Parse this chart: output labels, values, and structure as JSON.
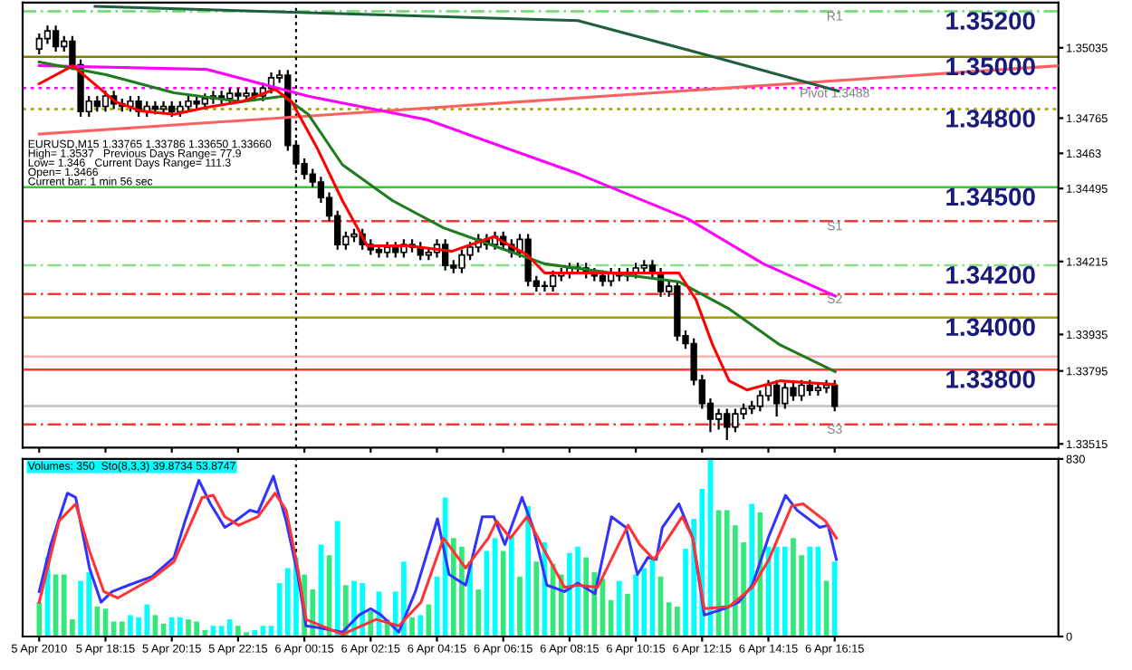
{
  "chart_data": [
    {
      "type": "candlestick",
      "title": "EURUSD,M15 1.33765 1.33786 1.33650 1.33660",
      "annotations": [
        "High= 1.3537   Previous Days Range= 77.9",
        "Low= 1.346   Current Days Range= 111.3",
        "Open= 1.3466",
        "Current bar: 1 min 56 sec",
        {
          "text": "1.35200",
          "x": "2010-04-06T20:57",
          "y": 1.35175
        },
        {
          "text": "1.35000",
          "x": "2010-04-06T20:57",
          "y": 1.35
        },
        {
          "text": "1.34800",
          "x": "2010-04-06T20:57",
          "y": 1.348
        },
        {
          "text": "1.34500",
          "x": "2010-04-06T20:57",
          "y": 1.345
        },
        {
          "text": "1.34200",
          "x": "2010-04-06T20:57",
          "y": 1.342
        },
        {
          "text": "1.34000",
          "x": "2010-04-06T20:57",
          "y": 1.34
        },
        {
          "text": "1.33800",
          "x": "2010-04-06T20:57",
          "y": 1.338
        }
      ],
      "x": [
        "2010-04-05T16:15",
        "2010-04-05T16:30",
        "2010-04-05T16:45",
        "2010-04-05T17:00",
        "2010-04-05T17:15",
        "2010-04-05T17:30",
        "2010-04-05T17:45",
        "2010-04-05T18:00",
        "2010-04-05T18:15",
        "2010-04-05T18:30",
        "2010-04-05T18:45",
        "2010-04-05T19:00",
        "2010-04-05T19:15",
        "2010-04-05T19:30",
        "2010-04-05T19:45",
        "2010-04-05T20:00",
        "2010-04-05T20:15",
        "2010-04-05T20:30",
        "2010-04-05T20:45",
        "2010-04-05T21:00",
        "2010-04-05T21:15",
        "2010-04-05T21:30",
        "2010-04-05T21:45",
        "2010-04-05T22:00",
        "2010-04-05T22:15",
        "2010-04-05T22:30",
        "2010-04-05T22:45",
        "2010-04-05T23:00",
        "2010-04-05T23:15",
        "2010-04-05T23:30",
        "2010-04-05T23:45",
        "2010-04-06T00:00",
        "2010-04-06T00:15",
        "2010-04-06T00:30",
        "2010-04-06T00:45",
        "2010-04-06T01:00",
        "2010-04-06T01:15",
        "2010-04-06T01:30",
        "2010-04-06T01:45",
        "2010-04-06T02:00",
        "2010-04-06T02:15",
        "2010-04-06T02:30",
        "2010-04-06T02:45",
        "2010-04-06T03:00",
        "2010-04-06T03:15",
        "2010-04-06T03:30",
        "2010-04-06T03:45",
        "2010-04-06T04:00",
        "2010-04-06T04:15",
        "2010-04-06T04:30",
        "2010-04-06T04:45",
        "2010-04-06T05:00",
        "2010-04-06T05:15",
        "2010-04-06T05:30",
        "2010-04-06T05:45",
        "2010-04-06T06:00",
        "2010-04-06T06:15",
        "2010-04-06T06:30",
        "2010-04-06T06:45",
        "2010-04-06T07:00",
        "2010-04-06T07:15",
        "2010-04-06T07:30",
        "2010-04-06T07:45",
        "2010-04-06T08:00",
        "2010-04-06T08:15",
        "2010-04-06T08:30",
        "2010-04-06T08:45",
        "2010-04-06T09:00",
        "2010-04-06T09:15",
        "2010-04-06T09:30",
        "2010-04-06T09:45",
        "2010-04-06T10:00",
        "2010-04-06T10:15",
        "2010-04-06T10:30",
        "2010-04-06T10:45",
        "2010-04-06T11:00",
        "2010-04-06T11:15",
        "2010-04-06T11:30",
        "2010-04-06T11:45",
        "2010-04-06T12:00",
        "2010-04-06T12:15",
        "2010-04-06T12:30",
        "2010-04-06T12:45",
        "2010-04-06T13:00",
        "2010-04-06T13:15",
        "2010-04-06T13:30",
        "2010-04-06T13:45",
        "2010-04-06T14:00",
        "2010-04-06T14:15",
        "2010-04-06T14:30",
        "2010-04-06T14:45",
        "2010-04-06T15:00",
        "2010-04-06T15:15",
        "2010-04-06T15:30",
        "2010-04-06T15:45",
        "2010-04-06T16:00",
        "2010-04-06T16:15"
      ],
      "ohlc": [
        [
          1.3503,
          1.3509,
          1.3501,
          1.3507
        ],
        [
          1.3507,
          1.3512,
          1.3505,
          1.351
        ],
        [
          1.351,
          1.3512,
          1.3502,
          1.3504
        ],
        [
          1.3504,
          1.3508,
          1.3502,
          1.3506
        ],
        [
          1.3506,
          1.3508,
          1.3495,
          1.3497
        ],
        [
          1.3497,
          1.3499,
          1.3477,
          1.3479
        ],
        [
          1.3479,
          1.3485,
          1.3477,
          1.3483
        ],
        [
          1.3483,
          1.3485,
          1.3479,
          1.3481
        ],
        [
          1.3481,
          1.3487,
          1.3479,
          1.3485
        ],
        [
          1.3485,
          1.3487,
          1.348,
          1.3482
        ],
        [
          1.3482,
          1.3484,
          1.3479,
          1.3481
        ],
        [
          1.3481,
          1.3485,
          1.3479,
          1.3483
        ],
        [
          1.3483,
          1.3485,
          1.3477,
          1.3479
        ],
        [
          1.3479,
          1.3483,
          1.3477,
          1.3481
        ],
        [
          1.3481,
          1.3483,
          1.3478,
          1.348
        ],
        [
          1.348,
          1.3483,
          1.3478,
          1.3481
        ],
        [
          1.3481,
          1.3483,
          1.3477,
          1.3479
        ],
        [
          1.3479,
          1.3483,
          1.3477,
          1.3481
        ],
        [
          1.3481,
          1.3485,
          1.3479,
          1.3483
        ],
        [
          1.3483,
          1.3485,
          1.348,
          1.3482
        ],
        [
          1.3482,
          1.3486,
          1.348,
          1.3484
        ],
        [
          1.3484,
          1.3487,
          1.3482,
          1.3485
        ],
        [
          1.3485,
          1.3487,
          1.3482,
          1.3484
        ],
        [
          1.3484,
          1.3488,
          1.3482,
          1.3486
        ],
        [
          1.3486,
          1.3488,
          1.3483,
          1.3485
        ],
        [
          1.3485,
          1.3488,
          1.3483,
          1.3486
        ],
        [
          1.3486,
          1.3488,
          1.3483,
          1.3485
        ],
        [
          1.3485,
          1.349,
          1.3483,
          1.3488
        ],
        [
          1.3488,
          1.3494,
          1.3486,
          1.3492
        ],
        [
          1.3492,
          1.3495,
          1.349,
          1.3493
        ],
        [
          1.3493,
          1.3495,
          1.3464,
          1.3466
        ],
        [
          1.3466,
          1.3468,
          1.3457,
          1.3459
        ],
        [
          1.3459,
          1.3461,
          1.3453,
          1.3455
        ],
        [
          1.3455,
          1.3457,
          1.345,
          1.3452
        ],
        [
          1.3452,
          1.3454,
          1.3444,
          1.3446
        ],
        [
          1.3446,
          1.3448,
          1.3437,
          1.3439
        ],
        [
          1.3439,
          1.3441,
          1.3426,
          1.3428
        ],
        [
          1.3428,
          1.3433,
          1.3426,
          1.3431
        ],
        [
          1.3431,
          1.3434,
          1.3429,
          1.3432
        ],
        [
          1.3432,
          1.3434,
          1.3426,
          1.3428
        ],
        [
          1.3428,
          1.343,
          1.3424,
          1.3426
        ],
        [
          1.3426,
          1.3428,
          1.3423,
          1.3425
        ],
        [
          1.3425,
          1.3429,
          1.3423,
          1.3427
        ],
        [
          1.3427,
          1.3429,
          1.3423,
          1.3425
        ],
        [
          1.3425,
          1.343,
          1.3423,
          1.3428
        ],
        [
          1.3428,
          1.343,
          1.3425,
          1.3427
        ],
        [
          1.3427,
          1.3429,
          1.3422,
          1.3424
        ],
        [
          1.3424,
          1.3427,
          1.3422,
          1.3425
        ],
        [
          1.3425,
          1.343,
          1.3423,
          1.3428
        ],
        [
          1.3428,
          1.343,
          1.3418,
          1.342
        ],
        [
          1.342,
          1.3422,
          1.3417,
          1.3419
        ],
        [
          1.3419,
          1.3426,
          1.3417,
          1.3424
        ],
        [
          1.3424,
          1.3429,
          1.3422,
          1.3427
        ],
        [
          1.3427,
          1.3432,
          1.3425,
          1.343
        ],
        [
          1.343,
          1.3432,
          1.3426,
          1.3428
        ],
        [
          1.3428,
          1.3433,
          1.3426,
          1.3431
        ],
        [
          1.3431,
          1.3433,
          1.3426,
          1.3428
        ],
        [
          1.3428,
          1.343,
          1.3423,
          1.3425
        ],
        [
          1.3425,
          1.3432,
          1.3423,
          1.343
        ],
        [
          1.343,
          1.3432,
          1.3412,
          1.3414
        ],
        [
          1.3414,
          1.3416,
          1.341,
          1.3412
        ],
        [
          1.3412,
          1.3414,
          1.341,
          1.3412
        ],
        [
          1.3412,
          1.3418,
          1.341,
          1.3416
        ],
        [
          1.3416,
          1.3419,
          1.3414,
          1.3417
        ],
        [
          1.3417,
          1.3421,
          1.3415,
          1.3419
        ],
        [
          1.3419,
          1.3421,
          1.3417,
          1.3419
        ],
        [
          1.3419,
          1.3421,
          1.3415,
          1.3417
        ],
        [
          1.3417,
          1.3419,
          1.3414,
          1.3416
        ],
        [
          1.3416,
          1.3418,
          1.3412,
          1.3414
        ],
        [
          1.3414,
          1.3419,
          1.3412,
          1.3417
        ],
        [
          1.3417,
          1.3419,
          1.3414,
          1.3416
        ],
        [
          1.3416,
          1.3419,
          1.3414,
          1.3417
        ],
        [
          1.3417,
          1.3421,
          1.3415,
          1.3419
        ],
        [
          1.3419,
          1.3422,
          1.3417,
          1.342
        ],
        [
          1.342,
          1.3422,
          1.3415,
          1.3417
        ],
        [
          1.3417,
          1.3419,
          1.3408,
          1.341
        ],
        [
          1.341,
          1.3414,
          1.3408,
          1.3412
        ],
        [
          1.3412,
          1.3414,
          1.3391,
          1.3393
        ],
        [
          1.3393,
          1.3395,
          1.3388,
          1.339
        ],
        [
          1.339,
          1.3392,
          1.3374,
          1.3376
        ],
        [
          1.3376,
          1.3378,
          1.3365,
          1.3367
        ],
        [
          1.3367,
          1.3369,
          1.3356,
          1.3361
        ],
        [
          1.3361,
          1.3365,
          1.3357,
          1.3363
        ],
        [
          1.3363,
          1.3365,
          1.3353,
          1.3358
        ],
        [
          1.3358,
          1.3365,
          1.3356,
          1.3363
        ],
        [
          1.3363,
          1.3367,
          1.3361,
          1.3365
        ],
        [
          1.3365,
          1.3368,
          1.3363,
          1.3366
        ],
        [
          1.3366,
          1.3372,
          1.3364,
          1.337
        ],
        [
          1.337,
          1.3376,
          1.3368,
          1.3374
        ],
        [
          1.3374,
          1.3376,
          1.3362,
          1.3367
        ],
        [
          1.3367,
          1.3375,
          1.3365,
          1.3373
        ],
        [
          1.3373,
          1.3375,
          1.3368,
          1.337
        ],
        [
          1.337,
          1.3376,
          1.3368,
          1.3374
        ],
        [
          1.3374,
          1.3376,
          1.337,
          1.3372
        ],
        [
          1.3372,
          1.3375,
          1.337,
          1.3373
        ],
        [
          1.3373,
          1.3376,
          1.3371,
          1.3374
        ],
        [
          1.3374,
          1.3376,
          1.3364,
          1.3366
        ]
      ],
      "series": [
        {
          "type": "line",
          "color": "#ff6060",
          "x": [
            "2010-04-05T16:15",
            "2010-04-06T23:00"
          ],
          "values": [
            1.34704,
            1.34966
          ]
        },
        {
          "type": "line",
          "color": "#1f5f3f",
          "x": [
            "2010-04-05T17:56",
            "2010-04-06T08:30",
            "2010-04-06T12:34",
            "2010-04-06T16:22"
          ],
          "values": [
            1.35194,
            1.35139,
            1.35001,
            1.34869
          ]
        },
        {
          "type": "line",
          "color": "#ff00ff",
          "x": [
            "2010-04-05T16:15",
            "2010-04-05T21:19",
            "2010-04-06T00:22",
            "2010-04-06T03:57",
            "2010-04-06T08:30",
            "2010-04-06T11:49",
            "2010-04-06T14:06",
            "2010-04-06T16:16"
          ],
          "values": [
            1.34966,
            1.34952,
            1.34849,
            1.34759,
            1.34552,
            1.34379,
            1.34206,
            1.34082
          ]
        },
        {
          "type": "line",
          "color": "#1e7b1e",
          "x": [
            "2010-04-05T16:15",
            "2010-04-05T18:16",
            "2010-04-05T20:19",
            "2010-04-05T22:21",
            "2010-04-05T23:37",
            "2010-04-06T00:22",
            "2010-04-06T01:24",
            "2010-04-06T02:55",
            "2010-04-06T04:27",
            "2010-04-06T05:58",
            "2010-04-06T07:30",
            "2010-04-06T09:31",
            "2010-04-06T11:33",
            "2010-04-06T13:04",
            "2010-04-06T14:36",
            "2010-04-06T16:16"
          ],
          "values": [
            1.3498,
            1.34932,
            1.34862,
            1.34828,
            1.34849,
            1.3478,
            1.34586,
            1.34448,
            1.34344,
            1.34275,
            1.34206,
            1.34171,
            1.34137,
            1.34033,
            1.33895,
            1.33792
          ]
        },
        {
          "type": "line",
          "color": "#ff0000",
          "x": [
            "2010-04-05T16:15",
            "2010-04-05T17:16",
            "2010-04-05T18:33",
            "2010-04-05T19:18",
            "2010-04-05T20:19",
            "2010-04-05T21:19",
            "2010-04-05T22:21",
            "2010-04-05T23:22",
            "2010-04-05T23:52",
            "2010-04-06T00:37",
            "2010-04-06T01:24",
            "2010-04-06T02:09",
            "2010-04-06T03:25",
            "2010-04-06T04:42",
            "2010-04-06T05:58",
            "2010-04-06T06:58",
            "2010-04-06T07:30",
            "2010-04-06T09:31",
            "2010-04-06T11:33",
            "2010-04-06T12:04",
            "2010-04-06T12:34",
            "2010-04-06T13:04",
            "2010-04-06T13:36",
            "2010-04-06T14:36",
            "2010-04-06T16:16"
          ],
          "values": [
            1.34897,
            1.34966,
            1.34828,
            1.34793,
            1.3478,
            1.34807,
            1.34828,
            1.34876,
            1.34828,
            1.34655,
            1.34448,
            1.34275,
            1.34275,
            1.34254,
            1.3431,
            1.34241,
            1.34171,
            1.34171,
            1.34171,
            1.34068,
            1.33895,
            1.33757,
            1.33722,
            1.33757,
            1.33743
          ]
        }
      ],
      "ref_lines": [
        {
          "axis": "y",
          "value": 1.35175,
          "label": "R1",
          "color": "#66dd66",
          "line_style": "dashed"
        },
        {
          "axis": "y",
          "value": 1.3488,
          "label": "Pivot 1.3488",
          "color": "#ff00ff",
          "line_style": "dotted"
        },
        {
          "axis": "y",
          "value": 1.3437,
          "label": "S1",
          "color": "#ff3333",
          "line_style": "dashed"
        },
        {
          "axis": "y",
          "value": 1.3409,
          "label": "S2",
          "color": "#ff3333",
          "line_style": "dashed"
        },
        {
          "axis": "y",
          "value": 1.3359,
          "label": "S3",
          "color": "#ff3333",
          "line_style": "dashed"
        },
        {
          "axis": "y",
          "value": 1.35,
          "color": "#808000",
          "line_style": "solid"
        },
        {
          "axis": "y",
          "value": 1.348,
          "color": "#a0a000",
          "line_style": "dotted"
        },
        {
          "axis": "y",
          "value": 1.345,
          "color": "#33cc33",
          "line_style": "solid"
        },
        {
          "axis": "y",
          "value": 1.342,
          "color": "#88dd88",
          "line_style": "dashed"
        },
        {
          "axis": "y",
          "value": 1.34,
          "color": "#a0a000",
          "line_style": "solid"
        },
        {
          "axis": "y",
          "value": 1.338,
          "color": "#ff3333",
          "line_style": "solid"
        },
        {
          "axis": "y",
          "value": 1.3385,
          "color": "#ffb0b0",
          "line_style": "solid"
        },
        {
          "axis": "y",
          "value": 1.3366,
          "color": "#c0c0c0",
          "line_style": "solid"
        },
        {
          "axis": "x",
          "value": "2010-04-06T00:00",
          "color": "#000000",
          "line_style": "dotted"
        }
      ],
      "xlim": [
        "2010-04-05T15:45",
        "2010-04-06T23:00"
      ],
      "xticks": [
        {
          "value": "2010-04-05T16:15",
          "label": null
        },
        {
          "value": "2010-04-05T18:15",
          "label": null
        },
        {
          "value": "2010-04-05T20:15",
          "label": null
        },
        {
          "value": "2010-04-05T22:15",
          "label": null
        },
        {
          "value": "2010-04-06T00:15",
          "label": null
        },
        {
          "value": "2010-04-06T02:15",
          "label": null
        },
        {
          "value": "2010-04-06T04:15",
          "label": null
        },
        {
          "value": "2010-04-06T06:15",
          "label": null
        },
        {
          "value": "2010-04-06T08:15",
          "label": null
        },
        {
          "value": "2010-04-06T10:15",
          "label": null
        },
        {
          "value": "2010-04-06T12:15",
          "label": null
        },
        {
          "value": "2010-04-06T14:15",
          "label": null
        },
        {
          "value": "2010-04-06T16:15",
          "label": null
        }
      ],
      "ylim": [
        1.33501,
        1.35208
      ],
      "yticks": [
        1.35035,
        1.34765,
        1.3463,
        1.34495,
        1.34215,
        1.33935,
        1.33795,
        1.33515
      ],
      "tick_labels": "y"
    },
    {
      "type": "bar",
      "title": "Volumes: 350  Sto(8,3,3) 39.8734 53.8747",
      "x": [
        "2010-04-05T16:15",
        "2010-04-05T16:30",
        "2010-04-05T16:45",
        "2010-04-05T17:00",
        "2010-04-05T17:15",
        "2010-04-05T17:30",
        "2010-04-05T17:45",
        "2010-04-05T18:00",
        "2010-04-05T18:15",
        "2010-04-05T18:30",
        "2010-04-05T18:45",
        "2010-04-05T19:00",
        "2010-04-05T19:15",
        "2010-04-05T19:30",
        "2010-04-05T19:45",
        "2010-04-05T20:00",
        "2010-04-05T20:15",
        "2010-04-05T20:30",
        "2010-04-05T20:45",
        "2010-04-05T21:00",
        "2010-04-05T21:15",
        "2010-04-05T21:30",
        "2010-04-05T21:45",
        "2010-04-05T22:00",
        "2010-04-05T22:15",
        "2010-04-05T22:30",
        "2010-04-05T22:45",
        "2010-04-05T23:00",
        "2010-04-05T23:15",
        "2010-04-05T23:30",
        "2010-04-05T23:45",
        "2010-04-06T00:00",
        "2010-04-06T00:15",
        "2010-04-06T00:30",
        "2010-04-06T00:45",
        "2010-04-06T01:00",
        "2010-04-06T01:15",
        "2010-04-06T01:30",
        "2010-04-06T01:45",
        "2010-04-06T02:00",
        "2010-04-06T02:15",
        "2010-04-06T02:30",
        "2010-04-06T02:45",
        "2010-04-06T03:00",
        "2010-04-06T03:15",
        "2010-04-06T03:30",
        "2010-04-06T03:45",
        "2010-04-06T04:00",
        "2010-04-06T04:15",
        "2010-04-06T04:30",
        "2010-04-06T04:45",
        "2010-04-06T05:00",
        "2010-04-06T05:15",
        "2010-04-06T05:30",
        "2010-04-06T05:45",
        "2010-04-06T06:00",
        "2010-04-06T06:15",
        "2010-04-06T06:30",
        "2010-04-06T06:45",
        "2010-04-06T07:00",
        "2010-04-06T07:15",
        "2010-04-06T07:30",
        "2010-04-06T07:45",
        "2010-04-06T08:00",
        "2010-04-06T08:15",
        "2010-04-06T08:30",
        "2010-04-06T08:45",
        "2010-04-06T09:00",
        "2010-04-06T09:15",
        "2010-04-06T09:30",
        "2010-04-06T09:45",
        "2010-04-06T10:00",
        "2010-04-06T10:15",
        "2010-04-06T10:30",
        "2010-04-06T10:45",
        "2010-04-06T11:00",
        "2010-04-06T11:15",
        "2010-04-06T11:30",
        "2010-04-06T11:45",
        "2010-04-06T12:00",
        "2010-04-06T12:15",
        "2010-04-06T12:30",
        "2010-04-06T12:45",
        "2010-04-06T13:00",
        "2010-04-06T13:15",
        "2010-04-06T13:30",
        "2010-04-06T13:45",
        "2010-04-06T14:00",
        "2010-04-06T14:15",
        "2010-04-06T14:30",
        "2010-04-06T14:45",
        "2010-04-06T15:00",
        "2010-04-06T15:15",
        "2010-04-06T15:30",
        "2010-04-06T15:45",
        "2010-04-06T16:00",
        "2010-04-06T16:15"
      ],
      "series": [
        {
          "type": "bar",
          "values": [
            160,
            370,
            290,
            290,
            80,
            260,
            300,
            140,
            130,
            70,
            70,
            100,
            90,
            150,
            100,
            60,
            90,
            90,
            80,
            70,
            30,
            50,
            50,
            80,
            50,
            20,
            30,
            50,
            50,
            250,
            320,
            370,
            290,
            220,
            430,
            380,
            540,
            240,
            260,
            250,
            120,
            210,
            80,
            210,
            350,
            90,
            100,
            150,
            280,
            650,
            460,
            420,
            350,
            220,
            400,
            460,
            400,
            470,
            280,
            610,
            350,
            440,
            340,
            290,
            390,
            420,
            370,
            300,
            270,
            170,
            260,
            200,
            290,
            320,
            360,
            280,
            160,
            140,
            410,
            550,
            690,
            830,
            590,
            590,
            520,
            440,
            620,
            580,
            420,
            420,
            420,
            460,
            380,
            420,
            420,
            260,
            350
          ],
          "colors": [
            "#32e87a",
            "#00ffff",
            "#32e87a",
            "#32e87a",
            "#32e87a",
            "#00ffff",
            "#00ffff",
            "#32e87a",
            "#32e87a",
            "#32e87a",
            "#32e87a",
            "#00ffff",
            "#00ffff",
            "#00ffff",
            "#32e87a",
            "#32e87a",
            "#00ffff",
            "#00ffff",
            "#32e87a",
            "#32e87a",
            "#32e87a",
            "#00ffff",
            "#00ffff",
            "#00ffff",
            "#32e87a",
            "#32e87a",
            "#00ffff",
            "#00ffff",
            "#00ffff",
            "#00ffff",
            "#00ffff",
            "#00ffff",
            "#32e87a",
            "#32e87a",
            "#00ffff",
            "#32e87a",
            "#00ffff",
            "#32e87a",
            "#00ffff",
            "#00ffff",
            "#32e87a",
            "#00ffff",
            "#32e87a",
            "#00ffff",
            "#00ffff",
            "#32e87a",
            "#00ffff",
            "#32e87a",
            "#00ffff",
            "#00ffff",
            "#32e87a",
            "#32e87a",
            "#00ffff",
            "#32e87a",
            "#00ffff",
            "#00ffff",
            "#32e87a",
            "#00ffff",
            "#32e87a",
            "#00ffff",
            "#32e87a",
            "#00ffff",
            "#32e87a",
            "#32e87a",
            "#00ffff",
            "#00ffff",
            "#32e87a",
            "#32e87a",
            "#32e87a",
            "#32e87a",
            "#00ffff",
            "#32e87a",
            "#00ffff",
            "#00ffff",
            "#00ffff",
            "#32e87a",
            "#32e87a",
            "#32e87a",
            "#00ffff",
            "#00ffff",
            "#00ffff",
            "#00ffff",
            "#32e87a",
            "#32e87a",
            "#32e87a",
            "#32e87a",
            "#00ffff",
            "#32e87a",
            "#00ffff",
            "#00ffff",
            "#00ffff",
            "#32e87a",
            "#32e87a",
            "#00ffff",
            "#00ffff",
            "#32e87a",
            "#00ffff"
          ]
        },
        {
          "type": "line",
          "color": "#3333ff",
          "x": [
            "2010-04-05T16:15",
            "2010-04-05T16:36",
            "2010-04-05T17:06",
            "2010-04-05T17:21",
            "2010-04-05T17:46",
            "2010-04-05T18:07",
            "2010-04-05T18:27",
            "2010-04-05T18:57",
            "2010-04-05T19:39",
            "2010-04-05T20:19",
            "2010-04-05T20:39",
            "2010-04-05T21:04",
            "2010-04-05T21:25",
            "2010-04-05T21:51",
            "2010-04-05T22:10",
            "2010-04-05T22:36",
            "2010-04-05T22:51",
            "2010-04-05T23:19",
            "2010-04-05T23:42",
            "2010-04-06T00:03",
            "2010-04-06T00:18",
            "2010-04-06T00:43",
            "2010-04-06T01:24",
            "2010-04-06T01:54",
            "2010-04-06T02:15",
            "2010-04-06T02:34",
            "2010-04-06T03:06",
            "2010-04-06T03:36",
            "2010-04-06T04:16",
            "2010-04-06T04:37",
            "2010-04-06T05:07",
            "2010-04-06T05:37",
            "2010-04-06T05:58",
            "2010-04-06T06:18",
            "2010-04-06T06:49",
            "2010-04-06T07:09",
            "2010-04-06T07:34",
            "2010-04-06T08:06",
            "2010-04-06T08:30",
            "2010-04-06T09:01",
            "2010-04-06T09:31",
            "2010-04-06T09:57",
            "2010-04-06T10:18",
            "2010-04-06T10:37",
            "2010-04-06T10:52",
            "2010-04-06T11:03",
            "2010-04-06T11:33",
            "2010-04-06T11:58",
            "2010-04-06T12:19",
            "2010-04-06T12:55",
            "2010-04-06T13:21",
            "2010-04-06T13:46",
            "2010-04-06T14:16",
            "2010-04-06T14:46",
            "2010-04-06T15:07",
            "2010-04-06T15:48",
            "2010-04-06T16:03",
            "2010-04-06T16:18"
          ],
          "values": [
            210,
            430,
            670,
            650,
            320,
            160,
            210,
            240,
            280,
            370,
            540,
            730,
            620,
            510,
            540,
            590,
            580,
            750,
            540,
            290,
            50,
            40,
            20,
            100,
            130,
            100,
            20,
            210,
            550,
            290,
            240,
            560,
            560,
            430,
            650,
            510,
            240,
            210,
            250,
            200,
            560,
            510,
            290,
            370,
            360,
            510,
            620,
            460,
            100,
            130,
            160,
            240,
            470,
            660,
            590,
            510,
            520,
            360
          ]
        },
        {
          "type": "line",
          "color": "#ff3333",
          "x": [
            "2010-04-05T16:15",
            "2010-04-05T16:51",
            "2010-04-05T17:21",
            "2010-04-05T17:46",
            "2010-04-05T18:12",
            "2010-04-05T18:37",
            "2010-04-05T19:39",
            "2010-04-05T20:19",
            "2010-04-05T21:10",
            "2010-04-05T21:30",
            "2010-04-05T21:51",
            "2010-04-05T22:16",
            "2010-04-05T22:51",
            "2010-04-05T23:22",
            "2010-04-05T23:42",
            "2010-04-06T00:03",
            "2010-04-06T00:18",
            "2010-04-06T01:24",
            "2010-04-06T02:25",
            "2010-04-06T03:06",
            "2010-04-06T03:46",
            "2010-04-06T04:27",
            "2010-04-06T05:07",
            "2010-04-06T05:48",
            "2010-04-06T06:03",
            "2010-04-06T06:28",
            "2010-04-06T06:58",
            "2010-04-06T07:30",
            "2010-04-06T08:06",
            "2010-04-06T08:30",
            "2010-04-06T09:06",
            "2010-04-06T10:01",
            "2010-04-06T10:22",
            "2010-04-06T10:48",
            "2010-04-06T11:39",
            "2010-04-06T11:58",
            "2010-04-06T12:19",
            "2010-04-06T13:04",
            "2010-04-06T13:46",
            "2010-04-06T14:16",
            "2010-04-06T14:57",
            "2010-04-06T15:18",
            "2010-04-06T15:58",
            "2010-04-06T16:18"
          ],
          "values": [
            160,
            540,
            620,
            400,
            210,
            180,
            270,
            350,
            650,
            660,
            560,
            520,
            560,
            670,
            590,
            320,
            80,
            10,
            80,
            50,
            160,
            460,
            320,
            460,
            540,
            460,
            560,
            400,
            230,
            240,
            230,
            520,
            430,
            360,
            560,
            460,
            130,
            140,
            230,
            360,
            610,
            620,
            540,
            460
          ]
        }
      ],
      "ref_lines": [
        {
          "axis": "x",
          "value": "2010-04-06T00:00",
          "color": "#000000",
          "line_style": "dotted"
        }
      ],
      "xlim": [
        "2010-04-05T15:45",
        "2010-04-06T23:00"
      ],
      "xticks": [
        {
          "value": "2010-04-05T16:15",
          "label": "5 Apr 2010"
        },
        {
          "value": "2010-04-05T18:15",
          "label": "5 Apr 18:15"
        },
        {
          "value": "2010-04-05T20:15",
          "label": "5 Apr 20:15"
        },
        {
          "value": "2010-04-05T22:15",
          "label": "5 Apr 22:15"
        },
        {
          "value": "2010-04-06T00:15",
          "label": "6 Apr 00:15"
        },
        {
          "value": "2010-04-06T02:15",
          "label": "6 Apr 02:15"
        },
        {
          "value": "2010-04-06T04:15",
          "label": "6 Apr 04:15"
        },
        {
          "value": "2010-04-06T06:15",
          "label": "6 Apr 06:15"
        },
        {
          "value": "2010-04-06T08:15",
          "label": "6 Apr 08:15"
        },
        {
          "value": "2010-04-06T10:15",
          "label": "6 Apr 10:15"
        },
        {
          "value": "2010-04-06T12:15",
          "label": "6 Apr 12:15"
        },
        {
          "value": "2010-04-06T14:15",
          "label": "6 Apr 14:15"
        },
        {
          "value": "2010-04-06T16:15",
          "label": "6 Apr 16:15"
        }
      ],
      "ylim": [
        0,
        830
      ],
      "yticks": [
        0,
        830
      ]
    }
  ]
}
